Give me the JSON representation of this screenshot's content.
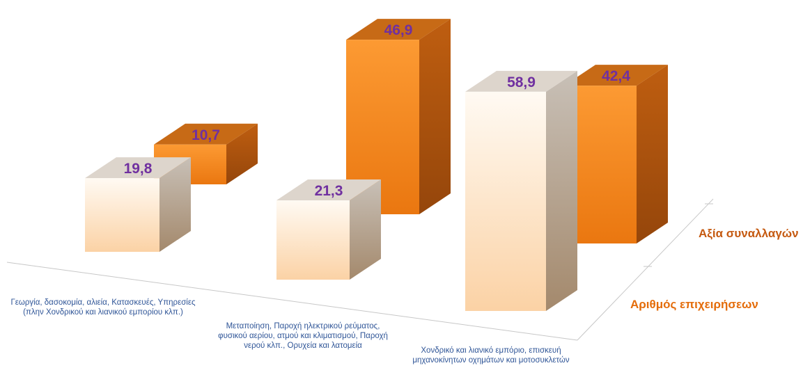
{
  "chart_data": {
    "type": "bar",
    "categories": [
      "Γεωργία, δασοκομία, αλιεία, Κατασκευές, Υπηρεσίες\n(πλην Χονδρικού και λιανικού εμπορίου κλπ.)",
      "Μεταποίηση, Παροχή ηλεκτρικού ρεύματος,\nφυσικού αερίου, ατμού και κλιματισμού, Παροχή\nνερού κλπ., Ορυχεία και λατομεία",
      "Χονδρικό και λιανικό εμπόριο, επισκευή\nμηχανοκίνητων οχημάτων και μοτοσυκλετών"
    ],
    "series": [
      {
        "name": "Αριθμός επιχειρήσεων",
        "values": [
          19.8,
          21.3,
          58.9
        ],
        "labels": [
          "19,8",
          "21,3",
          "58,9"
        ],
        "color": "#fbe3c8"
      },
      {
        "name": "Αξία συναλλαγών",
        "values": [
          10.7,
          46.9,
          42.4
        ],
        "labels": [
          "10,7",
          "46,9",
          "42,4"
        ],
        "color": "#f28c1e"
      }
    ],
    "value_label_color": "#7030a0",
    "grid": false,
    "legend": "right"
  }
}
